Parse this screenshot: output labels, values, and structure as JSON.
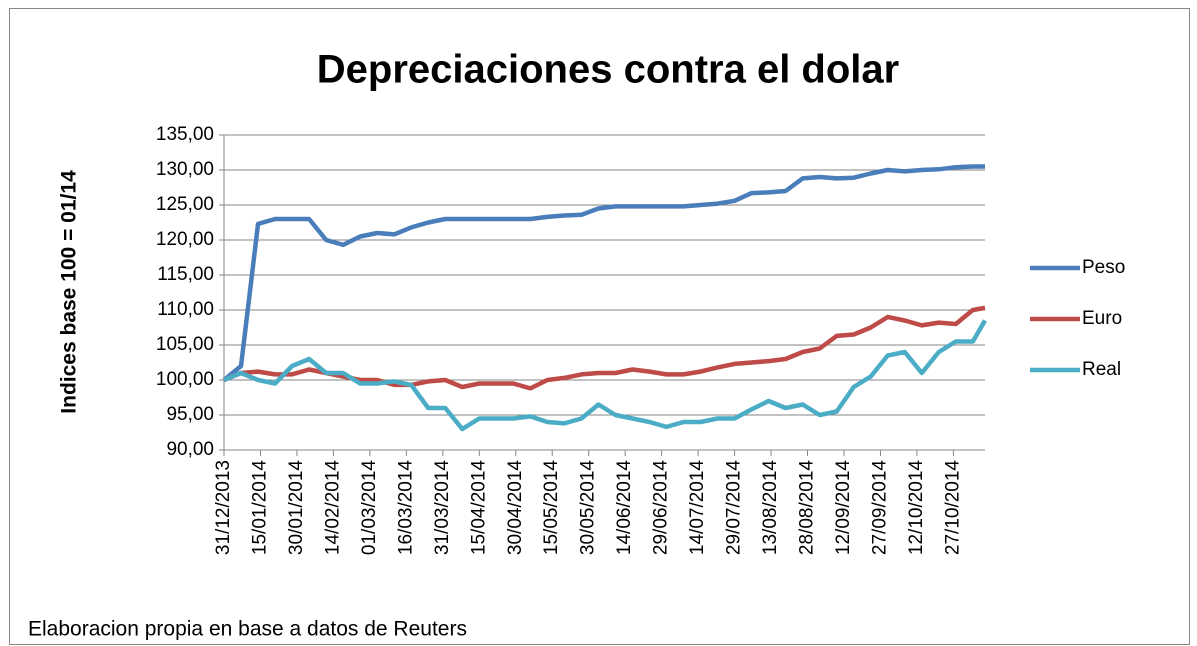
{
  "chart_data": {
    "type": "line",
    "title": "Depreciaciones contra el dolar",
    "y_label": "Indices base 100 = 01/14",
    "footnote": "Elaboracion propia en base a datos de Reuters",
    "x": [
      "31/12/2013",
      "07/01/2014",
      "14/01/2014",
      "21/01/2014",
      "28/01/2014",
      "04/02/2014",
      "11/02/2014",
      "18/02/2014",
      "25/02/2014",
      "04/03/2014",
      "11/03/2014",
      "18/03/2014",
      "25/03/2014",
      "01/04/2014",
      "08/04/2014",
      "15/04/2014",
      "22/04/2014",
      "29/04/2014",
      "06/05/2014",
      "13/05/2014",
      "20/05/2014",
      "27/05/2014",
      "03/06/2014",
      "10/06/2014",
      "17/06/2014",
      "24/06/2014",
      "01/07/2014",
      "08/07/2014",
      "15/07/2014",
      "22/07/2014",
      "29/07/2014",
      "05/08/2014",
      "12/08/2014",
      "19/08/2014",
      "26/08/2014",
      "02/09/2014",
      "09/09/2014",
      "16/09/2014",
      "23/09/2014",
      "30/09/2014",
      "07/10/2014",
      "14/10/2014",
      "21/10/2014",
      "28/10/2014",
      "04/11/2014",
      "09/11/2014"
    ],
    "xlim": [
      "31/12/2013",
      "09/11/2014"
    ],
    "xticks": [
      "31/12/2013",
      "15/01/2014",
      "30/01/2014",
      "14/02/2014",
      "01/03/2014",
      "16/03/2014",
      "31/03/2014",
      "15/04/2014",
      "30/04/2014",
      "15/05/2014",
      "30/05/2014",
      "14/06/2014",
      "29/06/2014",
      "14/07/2014",
      "29/07/2014",
      "13/08/2014",
      "28/08/2014",
      "12/09/2014",
      "27/09/2014",
      "12/10/2014",
      "27/10/2014"
    ],
    "ylim": [
      90,
      135
    ],
    "yticks": [
      {
        "value": 90,
        "label": "90,00"
      },
      {
        "value": 95,
        "label": "95,00"
      },
      {
        "value": 100,
        "label": "100,00"
      },
      {
        "value": 105,
        "label": "105,00"
      },
      {
        "value": 110,
        "label": "110,00"
      },
      {
        "value": 115,
        "label": "115,00"
      },
      {
        "value": 120,
        "label": "120,00"
      },
      {
        "value": 125,
        "label": "125,00"
      },
      {
        "value": 130,
        "label": "130,00"
      },
      {
        "value": 135,
        "label": "135,00"
      }
    ],
    "grid": true,
    "legend": "right",
    "series": [
      {
        "name": "Peso",
        "color": "#4a7ebb",
        "values": [
          100,
          102,
          122.3,
          123,
          123,
          123,
          120,
          119.3,
          120.5,
          121,
          120.8,
          121.8,
          122.5,
          123,
          123,
          123,
          123,
          123,
          123,
          123.3,
          123.5,
          123.6,
          124.5,
          124.8,
          124.8,
          124.8,
          124.8,
          124.8,
          125,
          125.2,
          125.6,
          126.7,
          126.8,
          127,
          128.8,
          129,
          128.8,
          128.9,
          129.5,
          130,
          129.8,
          130,
          130.1,
          130.4,
          130.5,
          130.5
        ]
      },
      {
        "name": "Euro",
        "color": "#be4b48",
        "values": [
          100,
          101,
          101.2,
          100.8,
          100.8,
          101.5,
          101,
          100.5,
          100,
          100,
          99.3,
          99.3,
          99.8,
          100,
          99,
          99.5,
          99.5,
          99.5,
          98.8,
          100,
          100.3,
          100.8,
          101,
          101,
          101.5,
          101.2,
          100.8,
          100.8,
          101.2,
          101.8,
          102.3,
          102.5,
          102.7,
          103,
          104,
          104.5,
          106.3,
          106.5,
          107.5,
          109,
          108.5,
          107.8,
          108.2,
          108,
          110,
          110.3
        ]
      },
      {
        "name": "Real",
        "color": "#4bacc6",
        "values": [
          100,
          101,
          100,
          99.5,
          102,
          103,
          101,
          101,
          99.5,
          99.5,
          99.8,
          99.3,
          96,
          96,
          93,
          94.5,
          94.5,
          94.5,
          94.8,
          94,
          93.8,
          94.5,
          96.5,
          95,
          94.5,
          94,
          93.3,
          94,
          94,
          94.5,
          94.5,
          95.8,
          97,
          96,
          96.5,
          95,
          95.5,
          99,
          100.5,
          103.5,
          104,
          101,
          104,
          105.5,
          105.5,
          108.5
        ]
      }
    ]
  }
}
